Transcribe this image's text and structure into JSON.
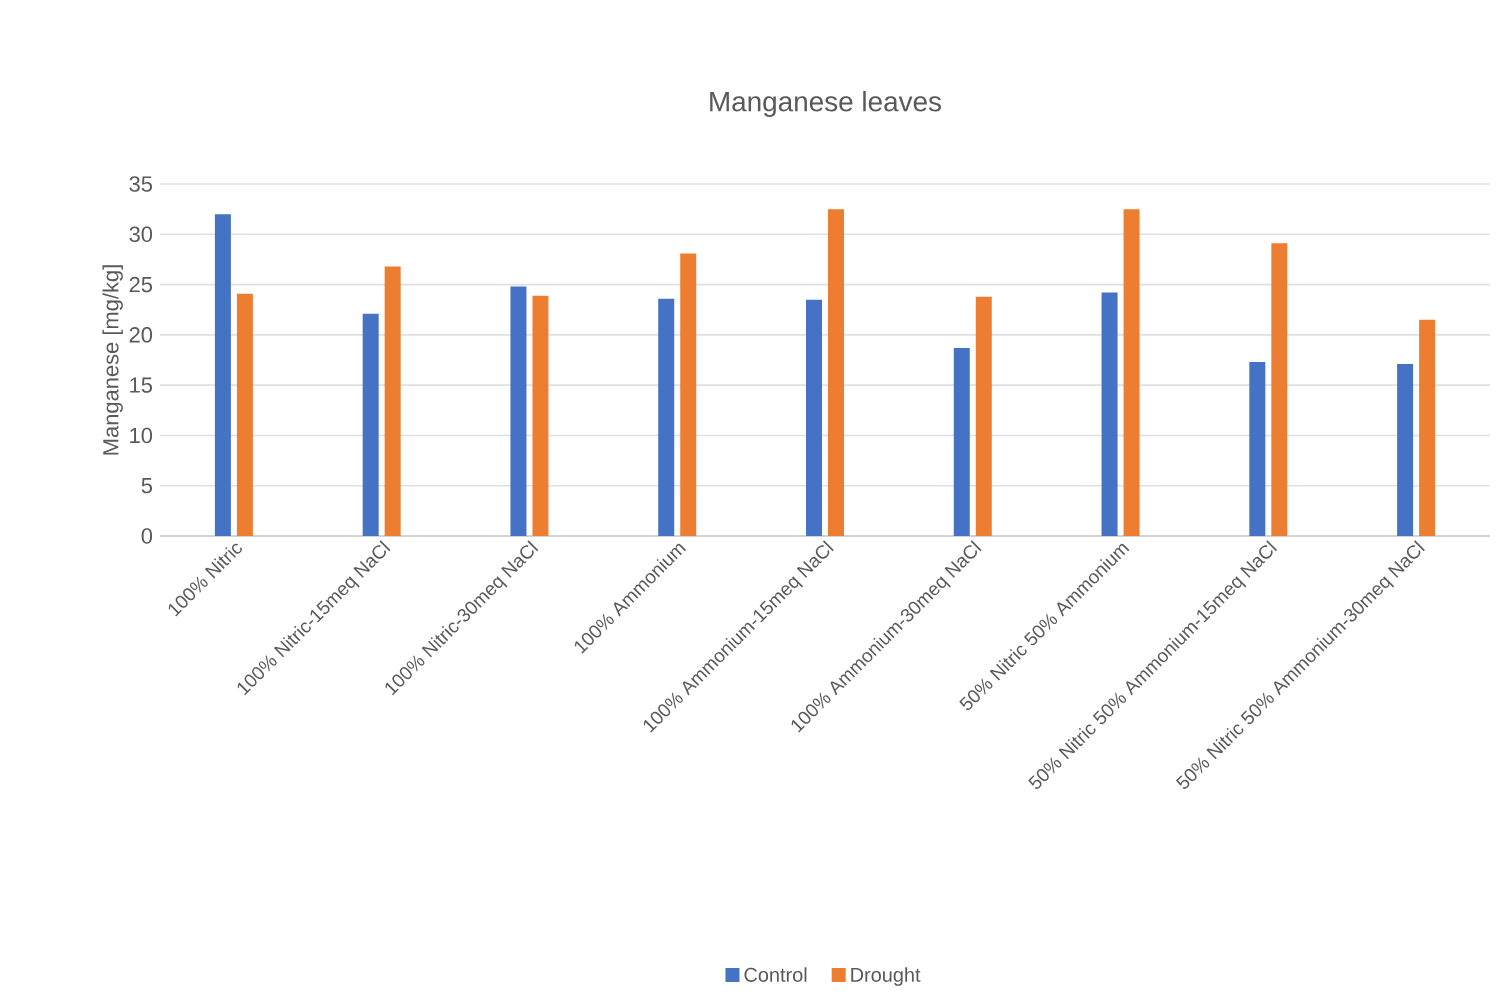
{
  "chart_data": {
    "type": "bar",
    "title": "Manganese leaves",
    "ylabel": "Manganese   [mg/kg]",
    "categories": [
      "100% Nitric",
      "100% Nitric-15meq NaCl",
      "100% Nitric-30meq NaCl",
      "100% Ammonium",
      "100% Ammonium-15meq NaCl",
      "100% Ammonium-30meq NaCl",
      "50% Nitric 50% Ammonium",
      "50% Nitric 50% Ammonium-15meq NaCl",
      "50% Nitric 50% Ammonium-30meq NaCl"
    ],
    "series": [
      {
        "name": "Control",
        "color": "#4472c4",
        "values": [
          32,
          22.1,
          24.8,
          23.6,
          23.5,
          18.7,
          24.2,
          17.3,
          17.1
        ]
      },
      {
        "name": "Drought",
        "color": "#ed7d31",
        "values": [
          24.1,
          26.8,
          23.9,
          28.1,
          32.5,
          23.8,
          32.5,
          29.1,
          21.5
        ]
      }
    ],
    "ylim": [
      0,
      35
    ],
    "yticks": [
      0,
      5,
      10,
      15,
      20,
      25,
      30,
      35
    ],
    "grid": "y",
    "legend": "bottom"
  }
}
